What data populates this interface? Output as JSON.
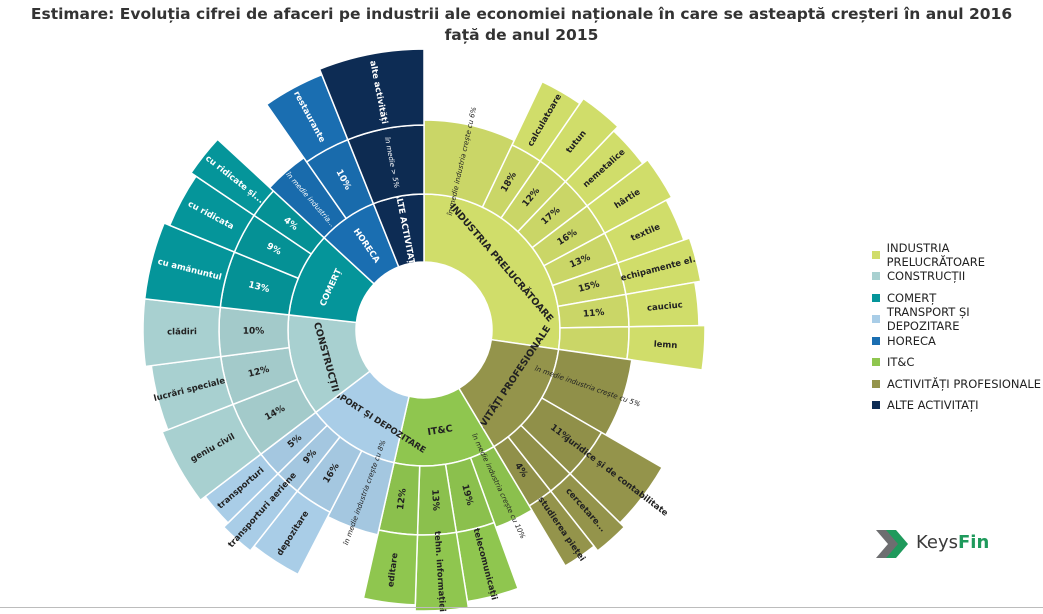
{
  "title": "Estimare: Evoluția cifrei de afaceri pe industrii ale economiei naționale în care se asteaptă creșteri în anul 2016",
  "subtitle": "față de anul 2015",
  "brand": {
    "name_part1": "Keys",
    "name_part2": "Fin"
  },
  "colors": {
    "INDUSTRIA PRELUCRĂTOARE": "#d0dd6a",
    "CONSTRUCȚII": "#a8d0d0",
    "COMERȚ": "#05959a",
    "TRANSPORT ȘI DEPOZITARE": "#a9cde7",
    "HORECA": "#1a6eb1",
    "IT&C": "#8fc64f",
    "ACTIVITĂȚI PROFESIONALE": "#94944b",
    "ALTE ACTIVITAȚI": "#0d2c54"
  },
  "chart_data": {
    "type": "sunburst",
    "legend": [
      "INDUSTRIA PRELUCRĂTOARE",
      "CONSTRUCȚII",
      "COMERȚ",
      "TRANSPORT ȘI DEPOZITARE",
      "HORECA",
      "IT&C",
      "ACTIVITĂȚI PROFESIONALE",
      "ALTE ACTIVITAȚI"
    ],
    "legend_position": "right",
    "industries": [
      {
        "label": "INDUSTRIA PRELUCRĂTOARE",
        "legend": "INDUSTRIA PRELUCRĂTOARE",
        "weight": 13.5,
        "ring2": [
          {
            "label": "în medie industria crește cu 6%",
            "weight": 3.5,
            "outer": ""
          },
          {
            "label": "18%",
            "weight": 1.25,
            "outer": "calculatoare"
          },
          {
            "label": "12%",
            "weight": 1.25,
            "outer": "tutun"
          },
          {
            "label": "17%",
            "weight": 1.25,
            "outer": "nemetalice"
          },
          {
            "label": "16%",
            "weight": 1.25,
            "outer": "hârtie"
          },
          {
            "label": "13%",
            "weight": 1.25,
            "outer": "textile"
          },
          {
            "label": "15%",
            "weight": 1.25,
            "outer": "echipamente el."
          },
          {
            "label": "11%",
            "weight": 1.25,
            "outer": "cauciuc"
          },
          {
            "label": "",
            "weight": 1.25,
            "outer": "lemn"
          }
        ]
      },
      {
        "label": "ACTIVITĂȚI PROFESIONALE",
        "legend": "ACTIVITĂȚI PROFESIONALE",
        "weight": 7,
        "ring2": [
          {
            "label": "în medie industria crește cu 5%",
            "weight": 3,
            "outer": ""
          },
          {
            "label": "11%",
            "weight": 2,
            "outer": "juridice și de contabilitate"
          },
          {
            "label": "",
            "weight": 1,
            "outer": "cercetare..."
          },
          {
            "label": "4%",
            "weight": 1,
            "outer": "studierea pieței"
          }
        ]
      },
      {
        "label": "IT&C",
        "legend": "IT&C",
        "weight": 6,
        "ring2": [
          {
            "label": "în medie industria crește cu 10%",
            "weight": 1.5,
            "outer": ""
          },
          {
            "label": "19%",
            "weight": 1.5,
            "outer": "telecomunicații"
          },
          {
            "label": "13%",
            "weight": 1.5,
            "outer": "tehn. informației"
          },
          {
            "label": "12%",
            "weight": 1.5,
            "outer": "editare"
          }
        ]
      },
      {
        "label": "TRANSPORT ȘI DEPOZITARE",
        "legend": "TRANSPORT ȘI DEPOZITARE",
        "weight": 5.5,
        "ring2": [
          {
            "label": "în medie industria crește cu 8%",
            "weight": 2,
            "outer": ""
          },
          {
            "label": "16%",
            "weight": 1.5,
            "outer": "depozitare"
          },
          {
            "label": "9%",
            "weight": 1,
            "outer": "transporturi aeriene"
          },
          {
            "label": "5%",
            "weight": 1,
            "outer": "transporturi"
          }
        ]
      },
      {
        "label": "CONSTRUCȚII",
        "legend": "CONSTRUCȚII",
        "weight": 6,
        "ring2": [
          {
            "label": "14%",
            "weight": 2.2,
            "outer": "geniu civil"
          },
          {
            "label": "12%",
            "weight": 1.9,
            "outer": "lucrări speciale"
          },
          {
            "label": "10%",
            "weight": 1.9,
            "outer": "clădiri"
          }
        ]
      },
      {
        "label": "COMERȚ",
        "legend": "COMERȚ",
        "weight": 5,
        "ring2": [
          {
            "label": "13%",
            "weight": 2.2,
            "outer": "cu amănuntul"
          },
          {
            "label": "9%",
            "weight": 1.6,
            "outer": "cu ridicata"
          },
          {
            "label": "4%",
            "weight": 1.2,
            "outer": "cu ridicate și..."
          }
        ]
      },
      {
        "label": "HORECA",
        "legend": "HORECA",
        "weight": 3.5,
        "ring2": [
          {
            "label": "în medie industria...",
            "weight": 1.7,
            "outer": ""
          },
          {
            "label": "10%",
            "weight": 1.8,
            "outer": "restaurante"
          }
        ]
      },
      {
        "label": "ALTE ACTIVITAȚI",
        "legend": "ALTE ACTIVITAȚI",
        "weight": 3,
        "ring2": [
          {
            "label": "în medie > 5%",
            "weight": 3,
            "outer": "alte activități"
          }
        ]
      }
    ]
  }
}
